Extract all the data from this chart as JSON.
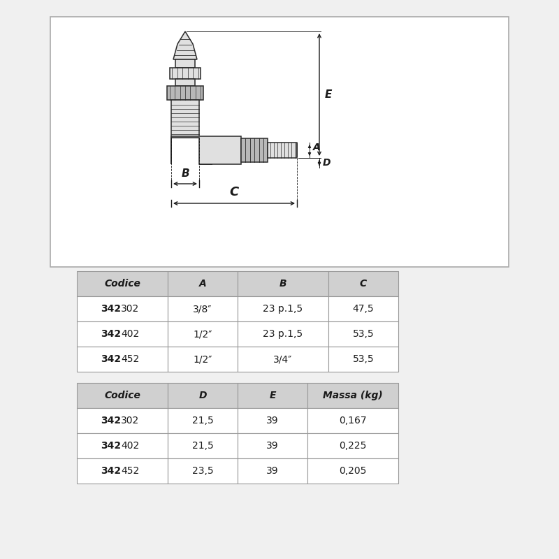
{
  "bg_color": "#f0f0f0",
  "diagram_box_color": "#ffffff",
  "table1_headers": [
    "Codice",
    "A",
    "B",
    "C"
  ],
  "table1_rows": [
    [
      "342302",
      "3/8″",
      "23 p.1,5",
      "47,5"
    ],
    [
      "342402",
      "1/2″",
      "23 p.1,5",
      "53,5"
    ],
    [
      "342452",
      "1/2″",
      "3/4″",
      "53,5"
    ]
  ],
  "table2_headers": [
    "Codice",
    "D",
    "E",
    "Massa (kg)"
  ],
  "table2_rows": [
    [
      "342302",
      "21,5",
      "39",
      "0,167"
    ],
    [
      "342402",
      "21,5",
      "39",
      "0,225"
    ],
    [
      "342452",
      "23,5",
      "39",
      "0,205"
    ]
  ],
  "table_header_bg": "#d0d0d0",
  "table_row_bg": "#ffffff",
  "table_border_color": "#999999",
  "text_color": "#1a1a1a",
  "line_color": "#2a2a2a",
  "fill_light": "#e0e0e0",
  "fill_mid": "#b8b8b8"
}
